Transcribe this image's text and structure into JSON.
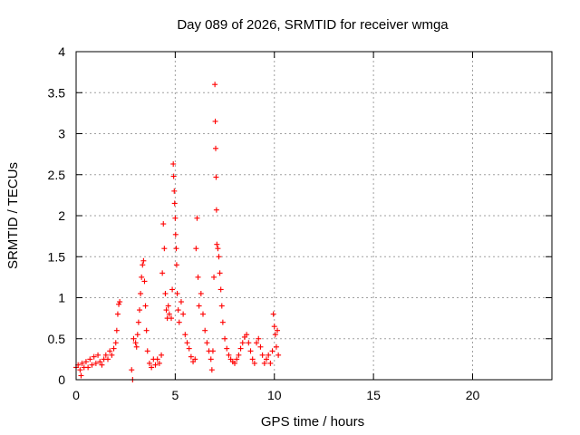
{
  "chart_data": {
    "type": "scatter",
    "title": "Day 089 of 2026, SRMTID for receiver wmga",
    "xlabel": "GPS time / hours",
    "ylabel": "SRMTID / TECUs",
    "xlim": [
      0,
      24
    ],
    "ylim": [
      0,
      4
    ],
    "xticks": [
      0,
      5,
      10,
      15,
      20
    ],
    "xtick_labels": [
      "0",
      "5",
      "10",
      "15",
      "20"
    ],
    "yticks": [
      0,
      0.5,
      1,
      1.5,
      2,
      2.5,
      3,
      3.5,
      4
    ],
    "ytick_labels": [
      "0",
      "0.5",
      "1",
      "1.5",
      "2",
      "2.5",
      "3",
      "3.5",
      "4"
    ],
    "grid": true,
    "marker": "+",
    "color": "#ff0000",
    "series": [
      {
        "name": "wmga",
        "points": [
          [
            0.0,
            0.15
          ],
          [
            0.1,
            0.18
          ],
          [
            0.2,
            0.12
          ],
          [
            0.25,
            0.05
          ],
          [
            0.3,
            0.2
          ],
          [
            0.4,
            0.15
          ],
          [
            0.5,
            0.22
          ],
          [
            0.6,
            0.15
          ],
          [
            0.7,
            0.25
          ],
          [
            0.8,
            0.18
          ],
          [
            0.9,
            0.28
          ],
          [
            1.0,
            0.2
          ],
          [
            1.1,
            0.3
          ],
          [
            1.2,
            0.22
          ],
          [
            1.3,
            0.18
          ],
          [
            1.4,
            0.25
          ],
          [
            1.5,
            0.3
          ],
          [
            1.6,
            0.25
          ],
          [
            1.7,
            0.35
          ],
          [
            1.8,
            0.3
          ],
          [
            1.9,
            0.38
          ],
          [
            2.0,
            0.45
          ],
          [
            2.05,
            0.6
          ],
          [
            2.1,
            0.8
          ],
          [
            2.15,
            0.92
          ],
          [
            2.2,
            0.95
          ],
          [
            2.8,
            0.12
          ],
          [
            2.85,
            0.0
          ],
          [
            2.9,
            0.5
          ],
          [
            3.0,
            0.45
          ],
          [
            3.05,
            0.4
          ],
          [
            3.1,
            0.55
          ],
          [
            3.15,
            0.7
          ],
          [
            3.2,
            0.85
          ],
          [
            3.25,
            1.05
          ],
          [
            3.3,
            1.25
          ],
          [
            3.35,
            1.4
          ],
          [
            3.4,
            1.45
          ],
          [
            3.45,
            1.2
          ],
          [
            3.5,
            0.9
          ],
          [
            3.55,
            0.6
          ],
          [
            3.6,
            0.35
          ],
          [
            3.7,
            0.2
          ],
          [
            3.8,
            0.15
          ],
          [
            3.9,
            0.25
          ],
          [
            4.0,
            0.18
          ],
          [
            4.1,
            0.25
          ],
          [
            4.2,
            0.2
          ],
          [
            4.3,
            0.3
          ],
          [
            4.35,
            1.3
          ],
          [
            4.4,
            1.9
          ],
          [
            4.45,
            1.6
          ],
          [
            4.5,
            1.05
          ],
          [
            4.55,
            0.85
          ],
          [
            4.6,
            0.75
          ],
          [
            4.65,
            0.9
          ],
          [
            4.7,
            0.8
          ],
          [
            4.8,
            0.75
          ],
          [
            4.85,
            1.1
          ],
          [
            4.9,
            2.63
          ],
          [
            4.92,
            2.48
          ],
          [
            4.95,
            2.3
          ],
          [
            4.97,
            2.15
          ],
          [
            5.0,
            1.97
          ],
          [
            5.02,
            1.77
          ],
          [
            5.05,
            1.6
          ],
          [
            5.07,
            1.4
          ],
          [
            5.1,
            1.05
          ],
          [
            5.15,
            0.85
          ],
          [
            5.2,
            0.7
          ],
          [
            5.3,
            0.95
          ],
          [
            5.4,
            0.8
          ],
          [
            5.5,
            0.55
          ],
          [
            5.6,
            0.45
          ],
          [
            5.7,
            0.38
          ],
          [
            5.8,
            0.28
          ],
          [
            5.9,
            0.22
          ],
          [
            6.0,
            0.25
          ],
          [
            6.05,
            1.6
          ],
          [
            6.1,
            1.97
          ],
          [
            6.15,
            1.25
          ],
          [
            6.2,
            0.9
          ],
          [
            6.3,
            1.05
          ],
          [
            6.4,
            0.8
          ],
          [
            6.5,
            0.6
          ],
          [
            6.6,
            0.45
          ],
          [
            6.7,
            0.35
          ],
          [
            6.8,
            0.25
          ],
          [
            6.85,
            0.12
          ],
          [
            6.9,
            0.35
          ],
          [
            6.95,
            1.25
          ],
          [
            7.0,
            3.6
          ],
          [
            7.02,
            3.15
          ],
          [
            7.04,
            2.82
          ],
          [
            7.06,
            2.47
          ],
          [
            7.08,
            2.07
          ],
          [
            7.1,
            1.65
          ],
          [
            7.15,
            1.6
          ],
          [
            7.2,
            1.5
          ],
          [
            7.25,
            1.3
          ],
          [
            7.3,
            1.1
          ],
          [
            7.35,
            0.9
          ],
          [
            7.4,
            0.7
          ],
          [
            7.5,
            0.5
          ],
          [
            7.6,
            0.38
          ],
          [
            7.7,
            0.3
          ],
          [
            7.8,
            0.25
          ],
          [
            7.9,
            0.22
          ],
          [
            8.0,
            0.2
          ],
          [
            8.1,
            0.25
          ],
          [
            8.2,
            0.3
          ],
          [
            8.3,
            0.38
          ],
          [
            8.4,
            0.45
          ],
          [
            8.5,
            0.52
          ],
          [
            8.6,
            0.55
          ],
          [
            8.7,
            0.45
          ],
          [
            8.8,
            0.35
          ],
          [
            8.9,
            0.25
          ],
          [
            9.0,
            0.2
          ],
          [
            9.1,
            0.45
          ],
          [
            9.2,
            0.5
          ],
          [
            9.3,
            0.4
          ],
          [
            9.4,
            0.3
          ],
          [
            9.5,
            0.2
          ],
          [
            9.6,
            0.25
          ],
          [
            9.7,
            0.3
          ],
          [
            9.8,
            0.2
          ],
          [
            9.9,
            0.35
          ],
          [
            9.95,
            0.8
          ],
          [
            10.0,
            0.65
          ],
          [
            10.05,
            0.55
          ],
          [
            10.1,
            0.4
          ],
          [
            10.15,
            0.6
          ],
          [
            10.2,
            0.3
          ]
        ]
      }
    ]
  }
}
